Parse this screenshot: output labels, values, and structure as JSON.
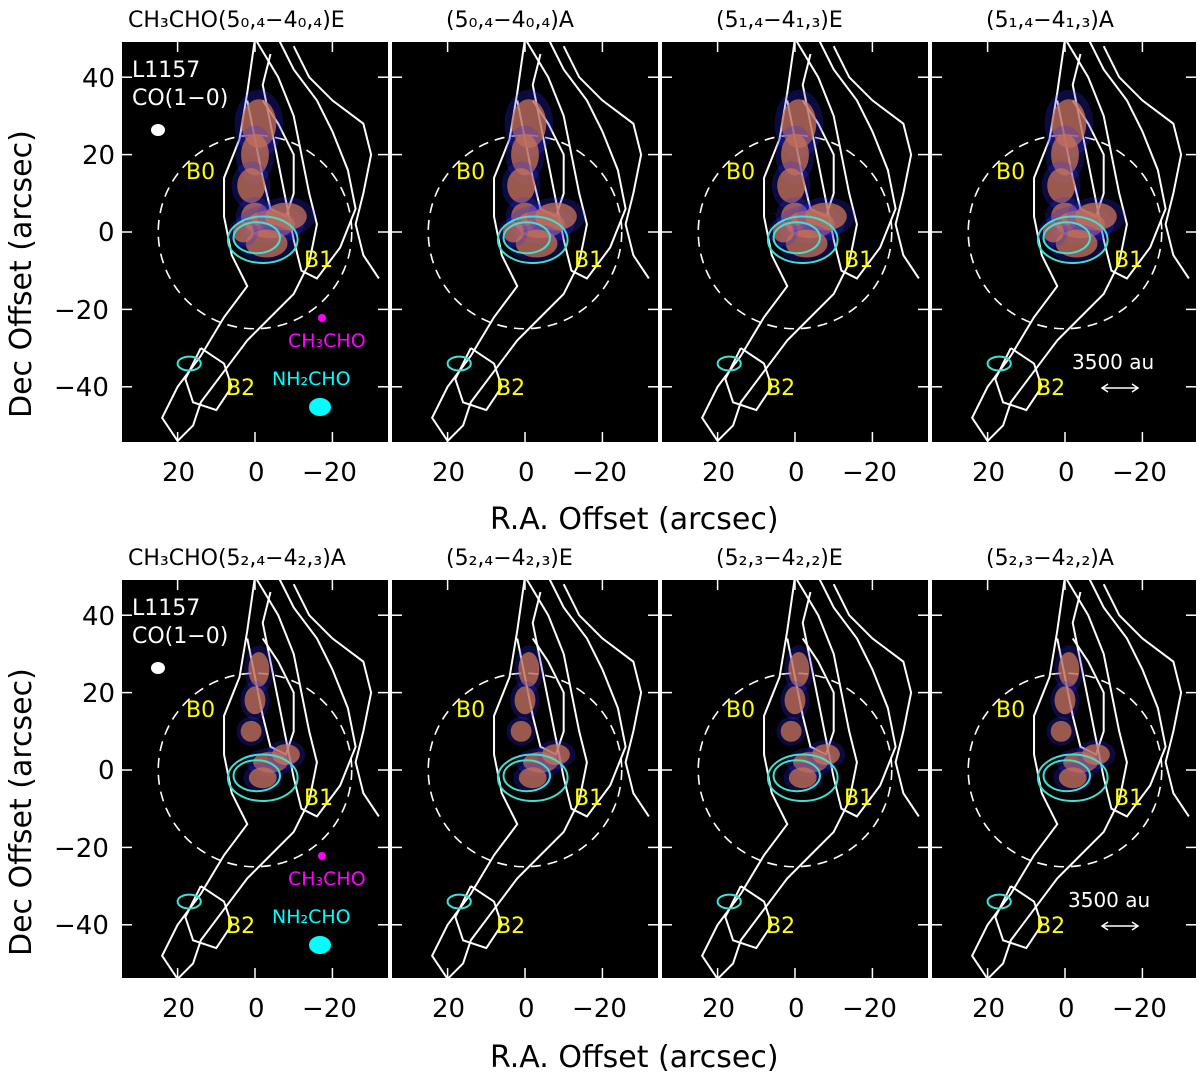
{
  "rows": [
    {
      "titles": [
        "CH₃CHO(5₀,₄−4₀,₄)E",
        "(5₀,₄−4₀,₄)A",
        "(5₁,₄−4₁,₃)E",
        "(5₁,₄−4₁,₃)A"
      ]
    },
    {
      "titles": [
        "CH₃CHO(5₂,₄−4₂,₃)A",
        "(5₂,₄−4₂,₃)E",
        "(5₂,₃−4₂,₂)E",
        "(5₂,₃−4₂,₂)A"
      ]
    }
  ],
  "axes": {
    "ylabel": "Dec Offset (arcsec)",
    "xlabel": "R.A. Offset (arcsec)",
    "y_ticks": [
      "40",
      "20",
      "0",
      "−20",
      "−40"
    ],
    "x_ticks": [
      "20",
      "0",
      "−20"
    ]
  },
  "annotations": {
    "source": "L1157",
    "tracer": "CO(1−0)",
    "b0": "B0",
    "b1": "B1",
    "b2": "B2",
    "ch3cho": "CH₃CHO",
    "nh2cho": "NH₂CHO",
    "scale": "3500 au"
  },
  "colors": {
    "background": "#000000",
    "co_contours": "#ffffff",
    "nh2cho_contours": "#40e0d0",
    "emission": "#ff8c1a",
    "labels": "#ffff00",
    "ch3cho_beam": "#ff00ff"
  }
}
